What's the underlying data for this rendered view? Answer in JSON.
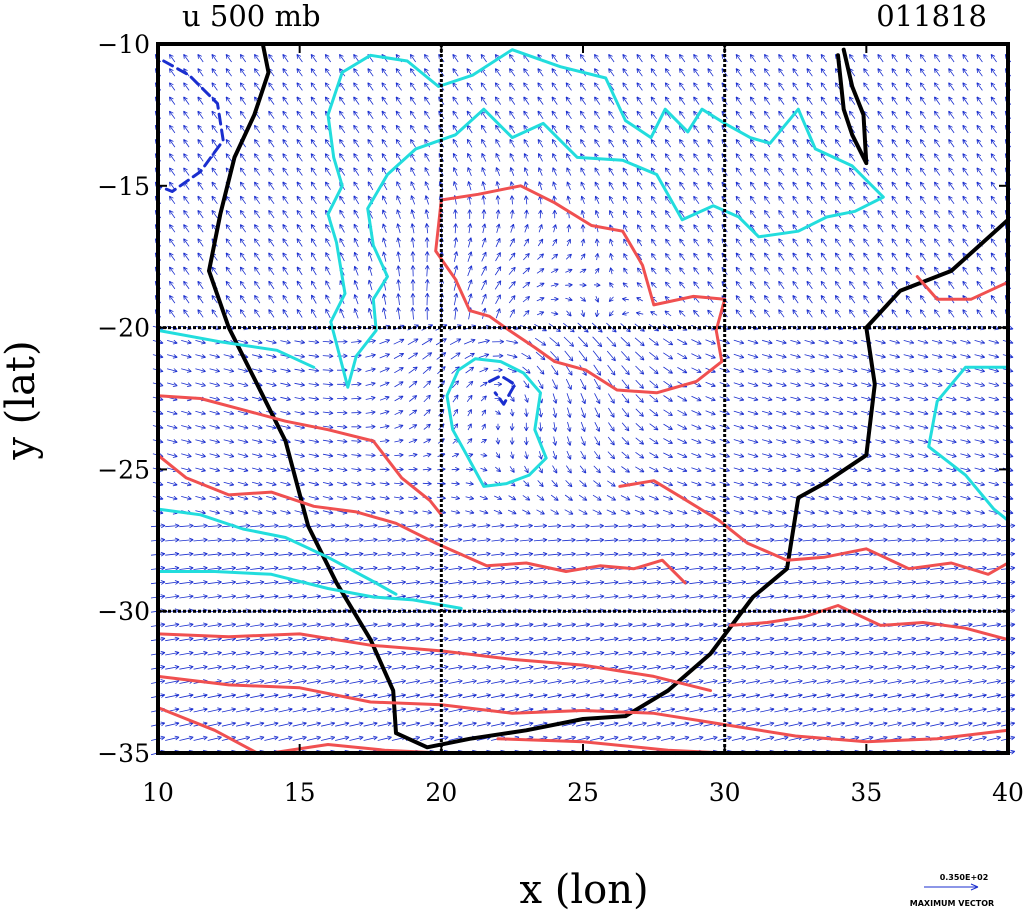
{
  "chart_data": {
    "type": "contour_vector_map",
    "title": "u 500 mb",
    "date_label": "011818",
    "xlabel": "x (lon)",
    "ylabel": "y (lat)",
    "xlim": [
      10,
      40
    ],
    "ylim": [
      -35,
      -10
    ],
    "x_ticks": [
      10,
      15,
      20,
      25,
      30,
      35,
      40
    ],
    "y_ticks": [
      -10,
      -15,
      -20,
      -25,
      -30,
      -35
    ],
    "x_tick_labels": [
      "10",
      "15",
      "20",
      "25",
      "30",
      "35",
      "40"
    ],
    "y_tick_labels": [
      "−10",
      "−15",
      "−20",
      "−25",
      "−30",
      "−35"
    ],
    "grid_lines": {
      "x": [
        20,
        30
      ],
      "y": [
        -20,
        -30
      ]
    },
    "legend": {
      "value_text": "0.350E+02",
      "label": "MAXIMUM VECTOR",
      "placement": "bottom-right"
    },
    "colors": {
      "coast": "#000000",
      "positive_contour": "#f05050",
      "low_contour": "#22dddd",
      "negative_contour": "#1a2ecf",
      "vectors": "#1a2ecf",
      "grid": "#000000"
    },
    "series": [
      {
        "name": "coastline",
        "style": "solid-black",
        "points": [
          [
            13.7,
            -10
          ],
          [
            13.9,
            -11
          ],
          [
            13.4,
            -12.5
          ],
          [
            12.7,
            -14
          ],
          [
            12.2,
            -16
          ],
          [
            11.8,
            -18
          ],
          [
            12.5,
            -20
          ],
          [
            13.5,
            -22
          ],
          [
            14.5,
            -24
          ],
          [
            15.3,
            -27
          ],
          [
            16.3,
            -29
          ],
          [
            17.5,
            -31
          ],
          [
            18.3,
            -32.8
          ],
          [
            18.4,
            -34.3
          ],
          [
            19.5,
            -34.8
          ],
          [
            21,
            -34.5
          ],
          [
            23,
            -34.2
          ],
          [
            25,
            -33.8
          ],
          [
            26.5,
            -33.7
          ],
          [
            28,
            -32.8
          ],
          [
            29.5,
            -31.5
          ],
          [
            31,
            -29.5
          ],
          [
            32.2,
            -28.5
          ],
          [
            32.6,
            -26
          ],
          [
            33.5,
            -25.5
          ],
          [
            35,
            -24.5
          ],
          [
            35.3,
            -22
          ],
          [
            35,
            -20
          ],
          [
            36.2,
            -18.7
          ],
          [
            38,
            -18
          ],
          [
            40,
            -16.2
          ]
        ]
      },
      {
        "name": "lake-malawi-coast",
        "style": "solid-black",
        "points": [
          [
            34.2,
            -10.2
          ],
          [
            34.5,
            -11.5
          ],
          [
            34.9,
            -12.5
          ],
          [
            35.0,
            -14.2
          ],
          [
            34.5,
            -13.2
          ],
          [
            34.2,
            -12.3
          ],
          [
            34.0,
            -10.4
          ]
        ]
      },
      {
        "name": "contour-cyan-north",
        "style": "cyan",
        "points": [
          [
            16.3,
            -17
          ],
          [
            16,
            -16
          ],
          [
            16.5,
            -15
          ],
          [
            16.2,
            -14
          ],
          [
            16,
            -12.5
          ],
          [
            16.5,
            -11
          ],
          [
            17.5,
            -10.4
          ],
          [
            18.8,
            -10.6
          ],
          [
            19.9,
            -11.5
          ],
          [
            21.1,
            -11.1
          ],
          [
            22.5,
            -10.2
          ],
          [
            24.2,
            -10.8
          ],
          [
            25.8,
            -11.2
          ],
          [
            26.5,
            -12.7
          ],
          [
            27.4,
            -13.3
          ],
          [
            27.9,
            -12.3
          ],
          [
            28.7,
            -13.1
          ],
          [
            29.2,
            -12.3
          ],
          [
            30,
            -12.8
          ],
          [
            30.9,
            -13.3
          ],
          [
            31.6,
            -13.5
          ],
          [
            32.6,
            -12.3
          ],
          [
            33.2,
            -13.7
          ],
          [
            34.5,
            -14.3
          ],
          [
            35.6,
            -15.4
          ],
          [
            34.6,
            -15.9
          ],
          [
            33.6,
            -16.1
          ],
          [
            32.6,
            -16.6
          ],
          [
            31.2,
            -16.8
          ],
          [
            30.5,
            -16.1
          ],
          [
            29.6,
            -15.7
          ],
          [
            28.5,
            -16.2
          ],
          [
            27.6,
            -14.6
          ],
          [
            26.4,
            -14.1
          ],
          [
            24.8,
            -14
          ],
          [
            23.6,
            -12.8
          ],
          [
            22.5,
            -13.3
          ],
          [
            21.5,
            -12.3
          ],
          [
            20.5,
            -13.2
          ],
          [
            19.1,
            -13.7
          ],
          [
            18.1,
            -14.6
          ],
          [
            17.4,
            -15.8
          ],
          [
            17.6,
            -17.1
          ],
          [
            18.1,
            -18.2
          ],
          [
            17.6,
            -19
          ],
          [
            17.7,
            -20.1
          ],
          [
            17,
            -21
          ],
          [
            16.7,
            -22.1
          ],
          [
            16.1,
            -19.8
          ],
          [
            16.6,
            -18.8
          ],
          [
            16.3,
            -17
          ]
        ]
      },
      {
        "name": "contour-cyan-west-1",
        "style": "cyan",
        "points": [
          [
            10,
            -20.1
          ],
          [
            12.2,
            -20.5
          ],
          [
            14.2,
            -20.8
          ],
          [
            15.5,
            -21.4
          ]
        ]
      },
      {
        "name": "contour-cyan-west-2",
        "style": "cyan",
        "points": [
          [
            10,
            -26.4
          ],
          [
            11.5,
            -26.6
          ],
          [
            13,
            -27.1
          ],
          [
            14.5,
            -27.4
          ],
          [
            16,
            -28.1
          ],
          [
            17.5,
            -28.9
          ],
          [
            18.4,
            -29.4
          ]
        ]
      },
      {
        "name": "contour-cyan-west-3",
        "style": "cyan",
        "points": [
          [
            10,
            -28.6
          ],
          [
            12,
            -28.6
          ],
          [
            14,
            -28.7
          ],
          [
            16,
            -29.2
          ],
          [
            17.6,
            -29.5
          ],
          [
            19,
            -29.6
          ],
          [
            20.7,
            -29.9
          ]
        ]
      },
      {
        "name": "contour-cyan-central-loop",
        "style": "cyan",
        "points": [
          [
            20.2,
            -22.4
          ],
          [
            20.6,
            -21.5
          ],
          [
            21.2,
            -21.1
          ],
          [
            22.1,
            -21.2
          ],
          [
            22.9,
            -21.6
          ],
          [
            23.5,
            -22.3
          ],
          [
            23.3,
            -23.6
          ],
          [
            23.7,
            -24.6
          ],
          [
            23.1,
            -25.2
          ],
          [
            22.3,
            -25.5
          ],
          [
            21.5,
            -25.6
          ],
          [
            20.9,
            -24.5
          ],
          [
            20.4,
            -23.6
          ],
          [
            20.2,
            -22.4
          ]
        ]
      },
      {
        "name": "contour-cyan-east",
        "style": "cyan",
        "points": [
          [
            40,
            -21.4
          ],
          [
            38.5,
            -21.4
          ],
          [
            37.5,
            -22.6
          ],
          [
            37.2,
            -24.2
          ],
          [
            38.5,
            -25.2
          ],
          [
            39.5,
            -26.4
          ],
          [
            40,
            -26.8
          ]
        ]
      },
      {
        "name": "contour-red-central",
        "style": "red",
        "points": [
          [
            20,
            -15.5
          ],
          [
            21.3,
            -15.3
          ],
          [
            22.8,
            -15
          ],
          [
            24,
            -15.6
          ],
          [
            25.3,
            -16.4
          ],
          [
            26.4,
            -16.6
          ],
          [
            27.1,
            -17.8
          ],
          [
            27.5,
            -19.2
          ],
          [
            28.9,
            -18.9
          ],
          [
            30,
            -19
          ],
          [
            29.7,
            -20.1
          ],
          [
            29.9,
            -21.2
          ],
          [
            29,
            -21.9
          ],
          [
            27.6,
            -22.3
          ],
          [
            26.2,
            -22.2
          ],
          [
            25.1,
            -21.5
          ],
          [
            24,
            -21.2
          ],
          [
            23.3,
            -20.7
          ],
          [
            22.4,
            -20.1
          ],
          [
            21.7,
            -19.6
          ],
          [
            21,
            -19.4
          ],
          [
            20.5,
            -18.3
          ],
          [
            19.8,
            -17.3
          ],
          [
            20,
            -15.5
          ]
        ]
      },
      {
        "name": "contour-red-1",
        "style": "red",
        "points": [
          [
            10,
            -22.4
          ],
          [
            11.5,
            -22.5
          ],
          [
            13,
            -22.9
          ],
          [
            14.5,
            -23.3
          ],
          [
            16,
            -23.6
          ],
          [
            17.6,
            -24
          ],
          [
            18.6,
            -25.3
          ],
          [
            19.6,
            -26.1
          ],
          [
            20,
            -26.6
          ]
        ]
      },
      {
        "name": "contour-red-2",
        "style": "red",
        "points": [
          [
            10,
            -24.5
          ],
          [
            11,
            -25.3
          ],
          [
            12.5,
            -25.9
          ],
          [
            14,
            -25.8
          ],
          [
            15.5,
            -26.3
          ],
          [
            17,
            -26.5
          ],
          [
            18.4,
            -26.9
          ],
          [
            19.8,
            -27.6
          ],
          [
            21.6,
            -28.4
          ],
          [
            23,
            -28.3
          ],
          [
            24.4,
            -28.6
          ],
          [
            25.6,
            -28.4
          ],
          [
            26.8,
            -28.5
          ],
          [
            27.8,
            -28.2
          ],
          [
            28.6,
            -29
          ]
        ]
      },
      {
        "name": "contour-red-3",
        "style": "red",
        "points": [
          [
            10,
            -30.8
          ],
          [
            12.5,
            -30.9
          ],
          [
            15,
            -30.8
          ],
          [
            17.5,
            -31.2
          ],
          [
            20,
            -31.4
          ],
          [
            22.5,
            -31.7
          ],
          [
            25,
            -31.9
          ],
          [
            27.5,
            -32.3
          ],
          [
            29.5,
            -32.8
          ]
        ]
      },
      {
        "name": "contour-red-4",
        "style": "red",
        "points": [
          [
            10,
            -32.3
          ],
          [
            12.5,
            -32.6
          ],
          [
            15,
            -32.7
          ],
          [
            17.5,
            -33.2
          ],
          [
            20,
            -33.3
          ],
          [
            22.5,
            -33.6
          ],
          [
            25,
            -33.5
          ],
          [
            27.5,
            -33.6
          ],
          [
            30,
            -34
          ],
          [
            32.5,
            -34.4
          ],
          [
            35,
            -34.6
          ],
          [
            37.5,
            -34.5
          ],
          [
            40,
            -34.2
          ]
        ]
      },
      {
        "name": "contour-red-5",
        "style": "red",
        "points": [
          [
            10,
            -33.4
          ],
          [
            12,
            -34.2
          ],
          [
            13.5,
            -35
          ]
        ]
      },
      {
        "name": "contour-red-6",
        "style": "red",
        "points": [
          [
            14,
            -35
          ],
          [
            16,
            -34.7
          ],
          [
            18,
            -34.9
          ],
          [
            20,
            -35
          ]
        ]
      },
      {
        "name": "contour-red-7",
        "style": "red",
        "points": [
          [
            22,
            -34.5
          ],
          [
            25,
            -34.6
          ],
          [
            28,
            -34.9
          ],
          [
            30,
            -35
          ]
        ]
      },
      {
        "name": "contour-red-east-1",
        "style": "red",
        "points": [
          [
            26.3,
            -25.6
          ],
          [
            27.5,
            -25.4
          ],
          [
            28.5,
            -26
          ],
          [
            29.8,
            -26.8
          ],
          [
            30.8,
            -27.6
          ],
          [
            32.2,
            -28.2
          ],
          [
            33.5,
            -28.1
          ],
          [
            35,
            -27.8
          ],
          [
            36.5,
            -28.5
          ],
          [
            38,
            -28.3
          ],
          [
            39.3,
            -28.7
          ],
          [
            40,
            -28.3
          ]
        ]
      },
      {
        "name": "contour-red-east-2",
        "style": "red",
        "points": [
          [
            30.2,
            -30.5
          ],
          [
            31.5,
            -30.4
          ],
          [
            32.8,
            -30.2
          ],
          [
            34,
            -29.8
          ],
          [
            35.5,
            -30.5
          ],
          [
            37,
            -30.4
          ],
          [
            38.5,
            -30.6
          ],
          [
            40,
            -31
          ]
        ]
      },
      {
        "name": "contour-red-northeast",
        "style": "red",
        "points": [
          [
            36.8,
            -18.2
          ],
          [
            37.5,
            -19
          ],
          [
            38.7,
            -19
          ],
          [
            40,
            -18.4
          ]
        ]
      },
      {
        "name": "contour-blue-dashed-nw",
        "style": "blue-dashed",
        "points": [
          [
            10.2,
            -10.6
          ],
          [
            11.1,
            -11.1
          ],
          [
            12.1,
            -12.1
          ],
          [
            12.3,
            -13.4
          ],
          [
            11.5,
            -14.5
          ],
          [
            10.5,
            -15.2
          ],
          [
            10,
            -15
          ]
        ]
      },
      {
        "name": "contour-blue-dashed-low",
        "style": "blue-dashed",
        "points": [
          [
            21.7,
            -21.9
          ],
          [
            22.1,
            -21.7
          ],
          [
            22.6,
            -22
          ],
          [
            22.2,
            -22.7
          ],
          [
            21.9,
            -22.3
          ]
        ]
      }
    ]
  }
}
